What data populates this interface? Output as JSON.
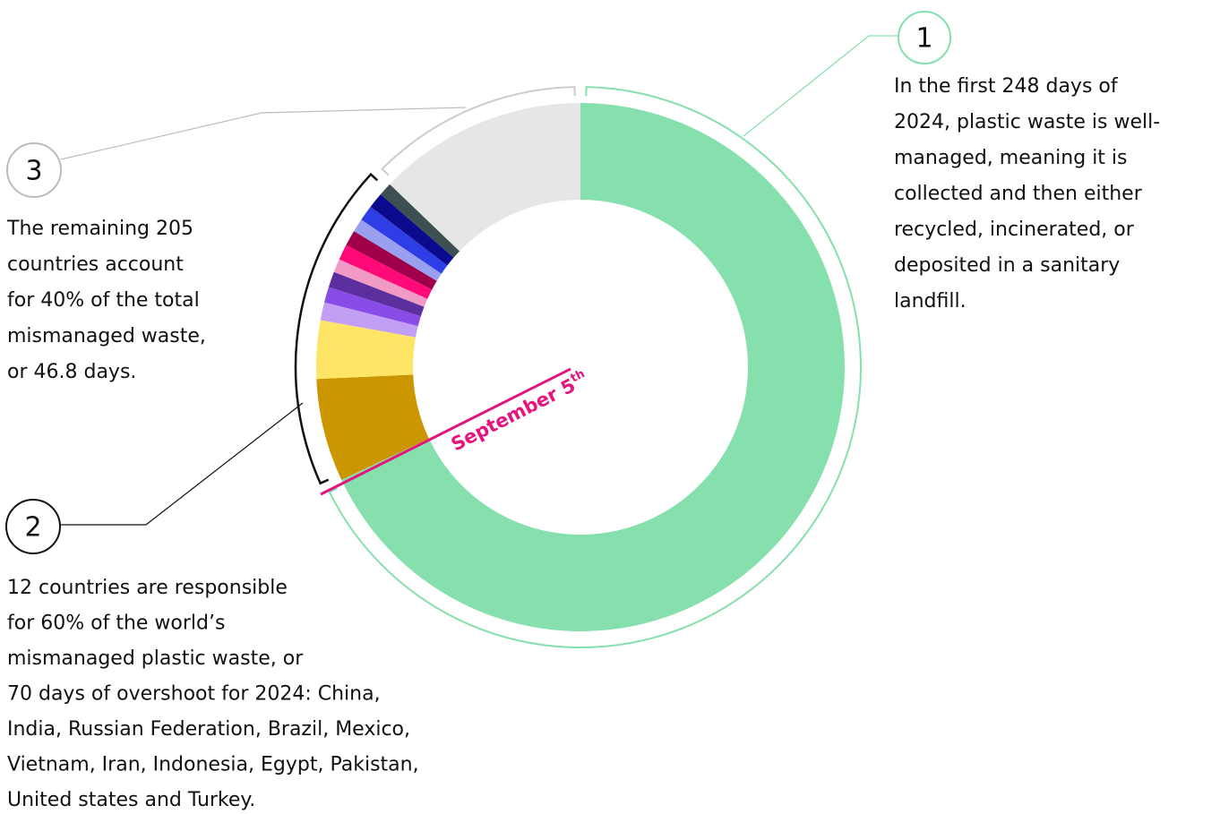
{
  "chart_data": {
    "type": "donut",
    "values": [
      248,
      23,
      13,
      4,
      3.5,
      3.5,
      3,
      3.5,
      3.5,
      3,
      3.5,
      3.5,
      3,
      46.8
    ],
    "colors": [
      "#86e0ad",
      "#cc9600",
      "#ffe566",
      "#c39ef5",
      "#8a4be6",
      "#5b2f9e",
      "#f19ac5",
      "#ff0a78",
      "#a0004a",
      "#9aa0f0",
      "#2f3de6",
      "#0a0a8c",
      "#3d4f50",
      "#e6e6e6"
    ],
    "marker": {
      "label": "September 5",
      "label_superscript": "th"
    },
    "annotations": [
      {
        "number": "1",
        "lines": [
          "In the first 248 days of",
          "2024, plastic waste is well-",
          "managed, meaning it is",
          "collected and then either",
          "recycled, incinerated, or",
          "deposited in a sanitary",
          "landfill."
        ]
      },
      {
        "number": "2",
        "lines": [
          "12 countries are responsible",
          "for 60% of the world’s",
          "mismanaged plastic waste, or",
          "70 days of overshoot for 2024: China,",
          "India, Russian Federation, Brazil, Mexico,",
          "Vietnam, Iran, Indonesia, Egypt, Pakistan,",
          "United states and Turkey."
        ]
      },
      {
        "number": "3",
        "lines": [
          "The remaining 205",
          "countries account",
          "for 40% of the total",
          "mismanaged waste,",
          "or 46.8 days."
        ]
      }
    ]
  }
}
